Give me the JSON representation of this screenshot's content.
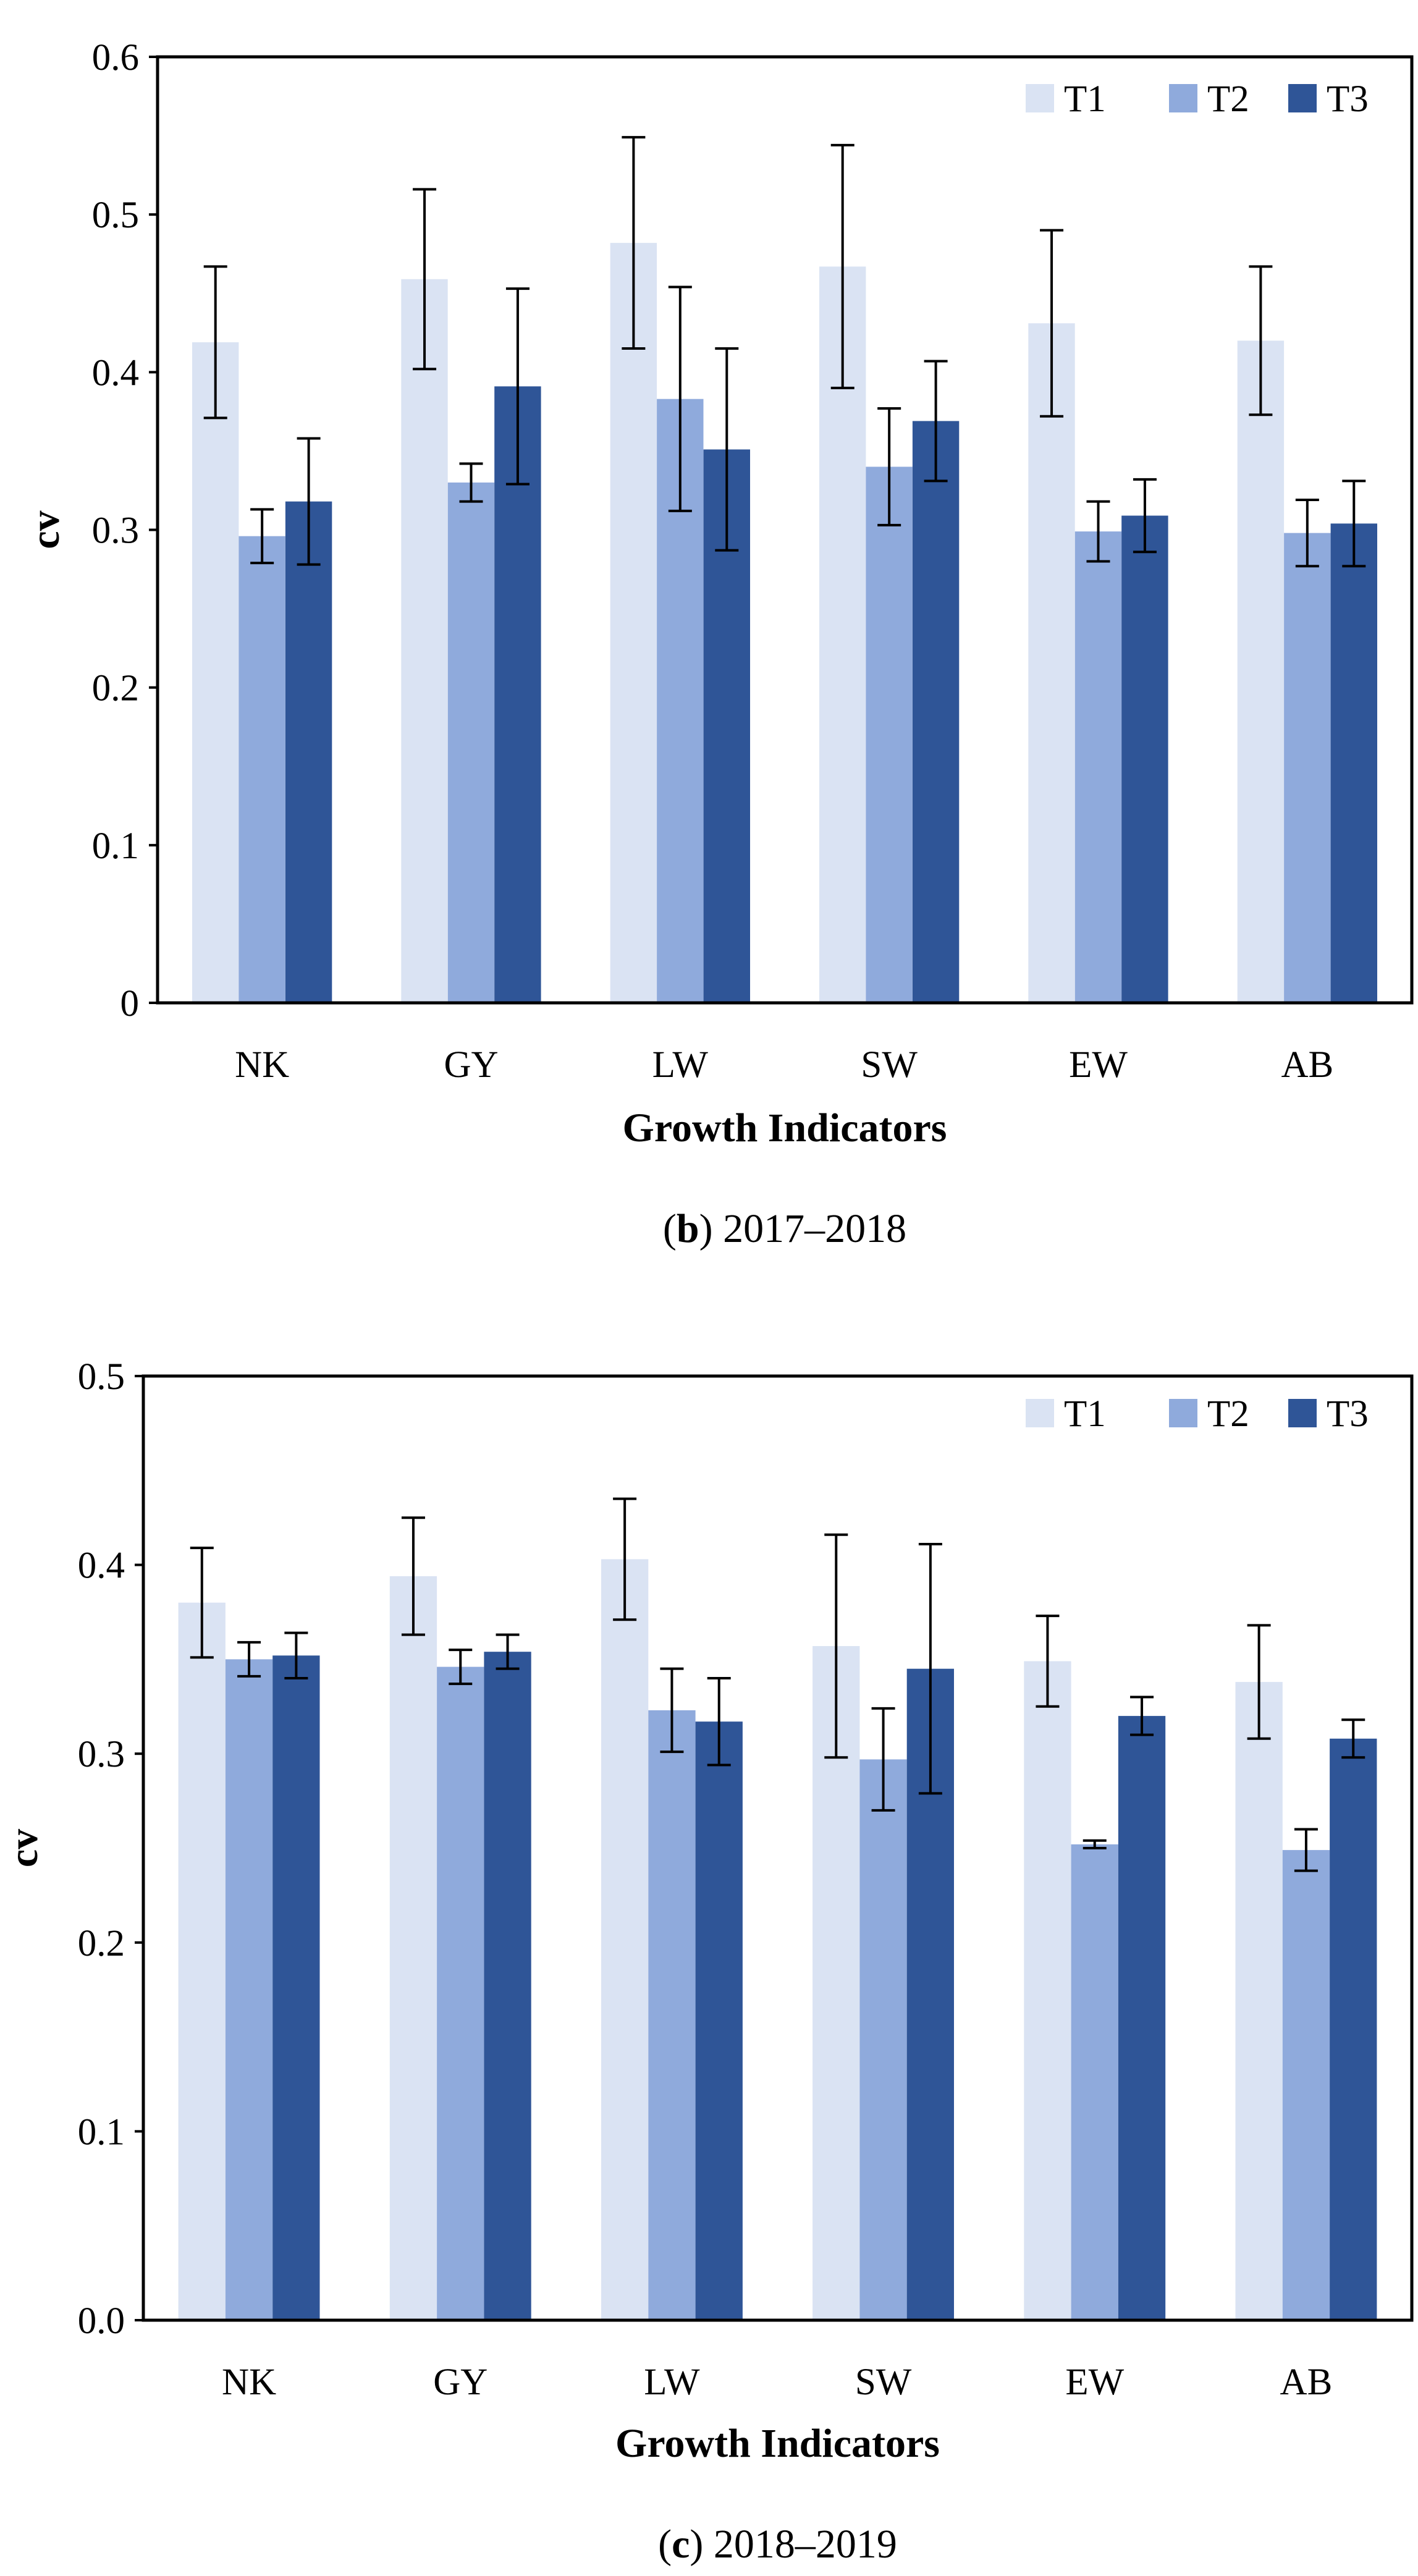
{
  "colors": {
    "T1": "#dae3f3",
    "T2": "#8faadc",
    "T3": "#2f5597",
    "axis": "#000000",
    "error_bar": "#000000"
  },
  "chart_data": [
    {
      "type": "bar",
      "panel_letter": "b",
      "panel_suffix": ") 2017–2018",
      "categories": [
        "NK",
        "GY",
        "LW",
        "SW",
        "EW",
        "AB"
      ],
      "xlabel": "Growth Indicators",
      "ylabel": "cv",
      "ylim": [
        0,
        0.6
      ],
      "yticks": [
        0,
        0.1,
        0.2,
        0.3,
        0.4,
        0.5,
        0.6
      ],
      "ytick_labels": [
        "0",
        "0.1",
        "0.2",
        "0.3",
        "0.4",
        "0.5",
        "0.6"
      ],
      "legend_position": "top-right",
      "series": [
        {
          "name": "T1",
          "values": [
            0.419,
            0.459,
            0.482,
            0.467,
            0.431,
            0.42
          ],
          "errors": [
            0.048,
            0.057,
            0.067,
            0.077,
            0.059,
            0.047
          ]
        },
        {
          "name": "T2",
          "values": [
            0.296,
            0.33,
            0.383,
            0.34,
            0.299,
            0.298
          ],
          "errors": [
            0.017,
            0.012,
            0.071,
            0.037,
            0.019,
            0.021
          ]
        },
        {
          "name": "T3",
          "values": [
            0.318,
            0.391,
            0.351,
            0.369,
            0.309,
            0.304
          ],
          "errors": [
            0.04,
            0.062,
            0.064,
            0.038,
            0.023,
            0.027
          ]
        }
      ]
    },
    {
      "type": "bar",
      "panel_letter": "c",
      "panel_suffix": ") 2018–2019",
      "categories": [
        "NK",
        "GY",
        "LW",
        "SW",
        "EW",
        "AB"
      ],
      "xlabel": "Growth Indicators",
      "ylabel": "cv",
      "ylim": [
        0,
        0.5
      ],
      "yticks": [
        0,
        0.1,
        0.2,
        0.3,
        0.4,
        0.5
      ],
      "ytick_labels": [
        "0.0",
        "0.1",
        "0.2",
        "0.3",
        "0.4",
        "0.5"
      ],
      "legend_position": "top-right",
      "series": [
        {
          "name": "T1",
          "values": [
            0.38,
            0.394,
            0.403,
            0.357,
            0.349,
            0.338
          ],
          "errors": [
            0.029,
            0.031,
            0.032,
            0.059,
            0.024,
            0.03
          ]
        },
        {
          "name": "T2",
          "values": [
            0.35,
            0.346,
            0.323,
            0.297,
            0.252,
            0.249
          ],
          "errors": [
            0.009,
            0.009,
            0.022,
            0.027,
            0.002,
            0.011
          ]
        },
        {
          "name": "T3",
          "values": [
            0.352,
            0.354,
            0.317,
            0.345,
            0.32,
            0.308
          ],
          "errors": [
            0.012,
            0.009,
            0.023,
            0.066,
            0.01,
            0.01
          ]
        }
      ]
    }
  ]
}
